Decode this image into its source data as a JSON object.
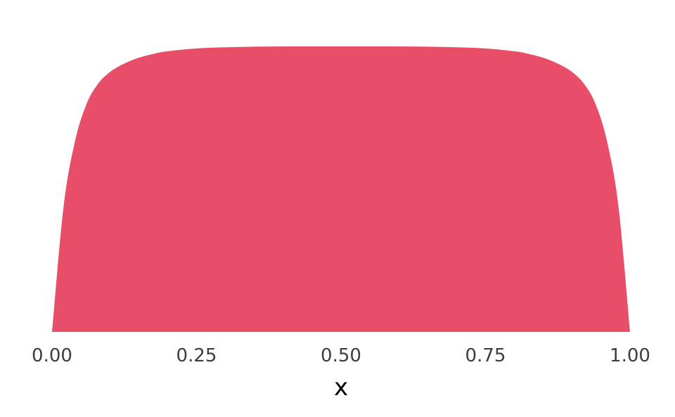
{
  "chart_data": {
    "type": "area",
    "xlabel": "x",
    "ylabel": "",
    "xlim": [
      0,
      1
    ],
    "ylim": [
      0,
      1
    ],
    "grid": false,
    "fill_color": "#E84E67",
    "x_ticks": [
      "0.00",
      "0.25",
      "0.50",
      "0.75",
      "1.00"
    ],
    "x_tick_values": [
      0,
      0.25,
      0.5,
      0.75,
      1
    ],
    "x": [
      0,
      0.02,
      0.04,
      0.06,
      0.08,
      0.1,
      0.12,
      0.14,
      0.16,
      0.18,
      0.2,
      0.25,
      0.3,
      0.35,
      0.4,
      0.45,
      0.5,
      0.55,
      0.6,
      0.65,
      0.7,
      0.75,
      0.8,
      0.82,
      0.84,
      0.86,
      0.88,
      0.9,
      0.92,
      0.94,
      0.96,
      0.98,
      1
    ],
    "y": [
      0,
      0.44,
      0.67,
      0.8,
      0.87,
      0.91,
      0.935,
      0.953,
      0.966,
      0.976,
      0.983,
      0.993,
      0.997,
      0.999,
      1,
      1,
      1,
      1,
      1,
      0.999,
      0.997,
      0.993,
      0.983,
      0.976,
      0.966,
      0.953,
      0.935,
      0.91,
      0.87,
      0.8,
      0.67,
      0.44,
      0
    ]
  }
}
